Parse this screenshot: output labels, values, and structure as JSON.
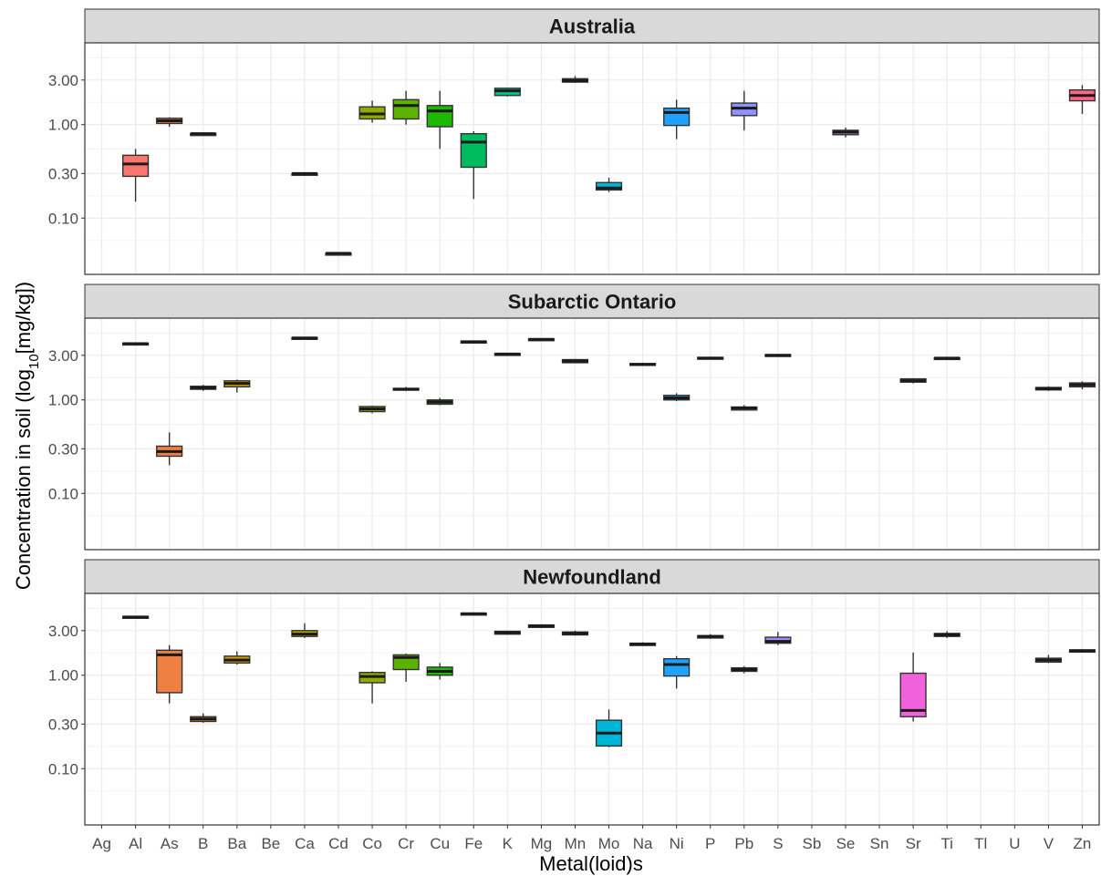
{
  "chart_data": {
    "type": "boxplot",
    "xlabel": "Metal(loid)s",
    "ylabel_main": "Concentration in soil (log",
    "ylabel_sub": "10",
    "ylabel_tail": "[mg/kg])",
    "y_scale": "log10",
    "ylim": [
      0.025,
      7.5
    ],
    "y_ticks": [
      0.1,
      0.3,
      1.0,
      3.0
    ],
    "y_tick_labels": [
      "0.10",
      "0.30",
      "1.00",
      "3.00"
    ],
    "grid": true,
    "categories": [
      "Ag",
      "Al",
      "As",
      "B",
      "Ba",
      "Be",
      "Ca",
      "Cd",
      "Co",
      "Cr",
      "Cu",
      "Fe",
      "K",
      "Mg",
      "Mn",
      "Mo",
      "Na",
      "Ni",
      "P",
      "Pb",
      "S",
      "Sb",
      "Se",
      "Sn",
      "Sr",
      "Ti",
      "Tl",
      "U",
      "V",
      "Zn"
    ],
    "colors": {
      "Al": "#F8766D",
      "As": "#EE8044",
      "B": "#E38900",
      "Ba": "#D09B00",
      "Ca": "#B2A800",
      "Cd": "#8FB600",
      "Co": "#8FAA00",
      "Cr": "#5BB300",
      "Cu": "#1FB800",
      "Fe": "#00BA5F",
      "K": "#00C08B",
      "Mg": "#00BFB0",
      "Mn": "#00BBC2",
      "Mo": "#00B6D8",
      "Na": "#00AEF0",
      "Ni": "#1FA2FF",
      "P": "#619CFF",
      "Pb": "#8F91FF",
      "S": "#A88BFF",
      "Se": "#C77CFF",
      "Sr": "#F062DC",
      "Ti": "#F564C4",
      "V": "#FC5F9C",
      "Zn": "#FF6585"
    },
    "panels": [
      {
        "title": "Australia",
        "boxes": [
          {
            "cat": "Al",
            "min": 0.15,
            "q1": 0.28,
            "median": 0.38,
            "q3": 0.47,
            "max": 0.55
          },
          {
            "cat": "As",
            "min": 0.95,
            "q1": 1.03,
            "median": 1.1,
            "q3": 1.17,
            "max": 1.2
          },
          {
            "cat": "B",
            "min": 0.8,
            "q1": 0.8,
            "median": 0.8,
            "q3": 0.8,
            "max": 0.8
          },
          {
            "cat": "Ca",
            "min": 0.3,
            "q1": 0.3,
            "median": 0.3,
            "q3": 0.3,
            "max": 0.3
          },
          {
            "cat": "Cd",
            "min": 0.042,
            "q1": 0.042,
            "median": 0.042,
            "q3": 0.042,
            "max": 0.042
          },
          {
            "cat": "Co",
            "min": 1.05,
            "q1": 1.15,
            "median": 1.3,
            "q3": 1.55,
            "max": 1.8
          },
          {
            "cat": "Cr",
            "min": 1.0,
            "q1": 1.15,
            "median": 1.6,
            "q3": 1.85,
            "max": 2.3
          },
          {
            "cat": "Cu",
            "min": 0.55,
            "q1": 0.95,
            "median": 1.4,
            "q3": 1.6,
            "max": 2.3
          },
          {
            "cat": "Fe",
            "min": 0.16,
            "q1": 0.35,
            "median": 0.65,
            "q3": 0.8,
            "max": 0.85
          },
          {
            "cat": "K",
            "min": 2.0,
            "q1": 2.05,
            "median": 2.3,
            "q3": 2.45,
            "max": 2.5
          },
          {
            "cat": "Mn",
            "min": 2.8,
            "q1": 2.85,
            "median": 2.95,
            "q3": 3.1,
            "max": 3.3
          },
          {
            "cat": "Mo",
            "min": 0.19,
            "q1": 0.2,
            "median": 0.21,
            "q3": 0.24,
            "max": 0.27
          },
          {
            "cat": "Ni",
            "min": 0.7,
            "q1": 0.98,
            "median": 1.35,
            "q3": 1.5,
            "max": 1.85
          },
          {
            "cat": "Pb",
            "min": 0.87,
            "q1": 1.25,
            "median": 1.5,
            "q3": 1.7,
            "max": 2.3
          },
          {
            "cat": "Se",
            "min": 0.73,
            "q1": 0.78,
            "median": 0.83,
            "q3": 0.87,
            "max": 0.93
          },
          {
            "cat": "Zn",
            "min": 1.3,
            "q1": 1.8,
            "median": 2.05,
            "q3": 2.35,
            "max": 2.65
          }
        ]
      },
      {
        "title": "Subarctic Ontario",
        "boxes": [
          {
            "cat": "Al",
            "min": 3.9,
            "q1": 3.95,
            "median": 4.0,
            "q3": 4.05,
            "max": 4.1
          },
          {
            "cat": "As",
            "min": 0.2,
            "q1": 0.25,
            "median": 0.28,
            "q3": 0.32,
            "max": 0.45
          },
          {
            "cat": "B",
            "min": 1.25,
            "q1": 1.3,
            "median": 1.35,
            "q3": 1.4,
            "max": 1.45
          },
          {
            "cat": "Ba",
            "min": 1.2,
            "q1": 1.38,
            "median": 1.5,
            "q3": 1.6,
            "max": 1.65
          },
          {
            "cat": "Ca",
            "min": 4.6,
            "q1": 4.6,
            "median": 4.6,
            "q3": 4.65,
            "max": 4.7
          },
          {
            "cat": "Co",
            "min": 0.72,
            "q1": 0.75,
            "median": 0.8,
            "q3": 0.85,
            "max": 0.87
          },
          {
            "cat": "Cr",
            "min": 1.25,
            "q1": 1.28,
            "median": 1.3,
            "q3": 1.33,
            "max": 1.38
          },
          {
            "cat": "Cu",
            "min": 0.88,
            "q1": 0.9,
            "median": 0.95,
            "q3": 1.0,
            "max": 1.05
          },
          {
            "cat": "Fe",
            "min": 4.2,
            "q1": 4.2,
            "median": 4.2,
            "q3": 4.25,
            "max": 4.3
          },
          {
            "cat": "K",
            "min": 3.05,
            "q1": 3.07,
            "median": 3.1,
            "q3": 3.13,
            "max": 3.15
          },
          {
            "cat": "Mg",
            "min": 4.4,
            "q1": 4.4,
            "median": 4.45,
            "q3": 4.5,
            "max": 4.55
          },
          {
            "cat": "Mn",
            "min": 2.5,
            "q1": 2.5,
            "median": 2.6,
            "q3": 2.7,
            "max": 2.75
          },
          {
            "cat": "Na",
            "min": 2.35,
            "q1": 2.37,
            "median": 2.4,
            "q3": 2.45,
            "max": 2.5
          },
          {
            "cat": "Ni",
            "min": 0.97,
            "q1": 1.0,
            "median": 1.05,
            "q3": 1.12,
            "max": 1.18
          },
          {
            "cat": "P",
            "min": 2.75,
            "q1": 2.75,
            "median": 2.8,
            "q3": 2.85,
            "max": 2.9
          },
          {
            "cat": "Pb",
            "min": 0.78,
            "q1": 0.78,
            "median": 0.82,
            "q3": 0.84,
            "max": 0.88
          },
          {
            "cat": "S",
            "min": 2.95,
            "q1": 2.97,
            "median": 3.0,
            "q3": 3.05,
            "max": 3.05
          },
          {
            "cat": "Sr",
            "min": 1.5,
            "q1": 1.55,
            "median": 1.6,
            "q3": 1.68,
            "max": 1.7
          },
          {
            "cat": "Ti",
            "min": 2.75,
            "q1": 2.77,
            "median": 2.8,
            "q3": 2.83,
            "max": 2.85
          },
          {
            "cat": "V",
            "min": 1.25,
            "q1": 1.28,
            "median": 1.32,
            "q3": 1.36,
            "max": 1.4
          },
          {
            "cat": "Zn",
            "min": 1.3,
            "q1": 1.38,
            "median": 1.45,
            "q3": 1.52,
            "max": 1.58
          }
        ]
      },
      {
        "title": "Newfoundland",
        "boxes": [
          {
            "cat": "Al",
            "min": 4.1,
            "q1": 4.15,
            "median": 4.2,
            "q3": 4.25,
            "max": 4.3
          },
          {
            "cat": "As",
            "min": 0.5,
            "q1": 0.65,
            "median": 1.65,
            "q3": 1.85,
            "max": 2.1
          },
          {
            "cat": "B",
            "min": 0.31,
            "q1": 0.32,
            "median": 0.34,
            "q3": 0.36,
            "max": 0.39
          },
          {
            "cat": "Ba",
            "min": 1.3,
            "q1": 1.35,
            "median": 1.45,
            "q3": 1.6,
            "max": 1.8
          },
          {
            "cat": "Ca",
            "min": 2.5,
            "q1": 2.6,
            "median": 2.75,
            "q3": 3.0,
            "max": 3.6
          },
          {
            "cat": "Co",
            "min": 0.5,
            "q1": 0.83,
            "median": 0.97,
            "q3": 1.07,
            "max": 1.1
          },
          {
            "cat": "Cr",
            "min": 0.85,
            "q1": 1.15,
            "median": 1.55,
            "q3": 1.65,
            "max": 1.7
          },
          {
            "cat": "Cu",
            "min": 0.9,
            "q1": 1.0,
            "median": 1.1,
            "q3": 1.22,
            "max": 1.35
          },
          {
            "cat": "Fe",
            "min": 4.5,
            "q1": 4.5,
            "median": 4.55,
            "q3": 4.6,
            "max": 4.65
          },
          {
            "cat": "K",
            "min": 2.7,
            "q1": 2.75,
            "median": 2.85,
            "q3": 2.95,
            "max": 3.0
          },
          {
            "cat": "Mg",
            "min": 3.2,
            "q1": 3.25,
            "median": 3.35,
            "q3": 3.45,
            "max": 3.5
          },
          {
            "cat": "Mn",
            "min": 2.65,
            "q1": 2.7,
            "median": 2.8,
            "q3": 2.9,
            "max": 3.0
          },
          {
            "cat": "Mo",
            "min": 0.17,
            "q1": 0.175,
            "median": 0.24,
            "q3": 0.33,
            "max": 0.43
          },
          {
            "cat": "Na",
            "min": 2.05,
            "q1": 2.08,
            "median": 2.15,
            "q3": 2.2,
            "max": 2.25
          },
          {
            "cat": "Ni",
            "min": 0.72,
            "q1": 0.98,
            "median": 1.3,
            "q3": 1.5,
            "max": 1.6
          },
          {
            "cat": "P",
            "min": 2.45,
            "q1": 2.5,
            "median": 2.6,
            "q3": 2.65,
            "max": 2.75
          },
          {
            "cat": "Pb",
            "min": 1.05,
            "q1": 1.1,
            "median": 1.15,
            "q3": 1.2,
            "max": 1.25
          },
          {
            "cat": "S",
            "min": 2.1,
            "q1": 2.2,
            "median": 2.3,
            "q3": 2.55,
            "max": 2.9
          },
          {
            "cat": "Sr",
            "min": 0.32,
            "q1": 0.36,
            "median": 0.42,
            "q3": 1.05,
            "max": 1.75
          },
          {
            "cat": "Ti",
            "min": 2.5,
            "q1": 2.6,
            "median": 2.7,
            "q3": 2.8,
            "max": 2.95
          },
          {
            "cat": "V",
            "min": 1.35,
            "q1": 1.38,
            "median": 1.45,
            "q3": 1.52,
            "max": 1.65
          },
          {
            "cat": "Zn",
            "min": 1.75,
            "q1": 1.77,
            "median": 1.82,
            "q3": 1.87,
            "max": 1.9
          }
        ]
      }
    ]
  }
}
